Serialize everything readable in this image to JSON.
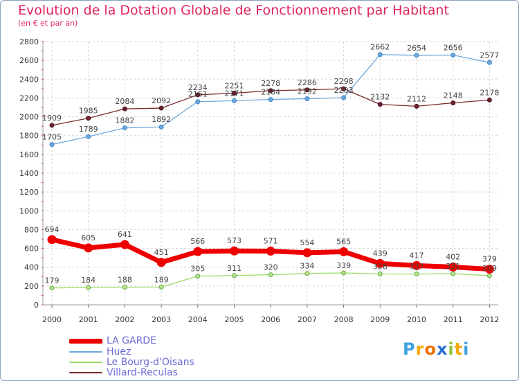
{
  "chart_data": {
    "type": "line",
    "title": "Evolution de la Dotation Globale de Fonctionnement par Habitant",
    "subtitle": "(en € et par an)",
    "xlabel": "",
    "ylabel": "",
    "ylim": [
      0,
      2800
    ],
    "yticks": [
      0,
      200,
      400,
      600,
      800,
      1000,
      1200,
      1400,
      1600,
      1800,
      2000,
      2200,
      2400,
      2600,
      2800
    ],
    "grid": true,
    "categories": [
      "2000",
      "2001",
      "2002",
      "2003",
      "2004",
      "2005",
      "2006",
      "2007",
      "2008",
      "2009",
      "2010",
      "2011",
      "2012"
    ],
    "series": [
      {
        "name": "LA GARDE",
        "color": "#ee0000",
        "values": [
          694,
          605,
          641,
          451,
          566,
          573,
          571,
          554,
          565,
          439,
          417,
          402,
          379
        ]
      },
      {
        "name": "Huez",
        "color": "#6fa8dc",
        "values": [
          1705,
          1789,
          1882,
          1892,
          2161,
          2171,
          2184,
          2192,
          2203,
          2662,
          2654,
          2656,
          2577
        ]
      },
      {
        "name": "Le Bourg-d'Oisans",
        "color": "#99dd66",
        "values": [
          179,
          184,
          188,
          189,
          305,
          311,
          320,
          334,
          339,
          328,
          327,
          331,
          309
        ]
      },
      {
        "name": "Villard-Reculas",
        "color": "#7a2d2d",
        "values": [
          1909,
          1985,
          2084,
          2092,
          2234,
          2251,
          2278,
          2286,
          2298,
          2132,
          2112,
          2148,
          2178
        ]
      }
    ]
  },
  "logo": {
    "letters": [
      "P",
      "r",
      "o",
      "x",
      "i",
      "t",
      "i"
    ],
    "colors": [
      "#3da0e0",
      "#f7a800",
      "#f07000",
      "#2a6fd6",
      "#8cc63f",
      "#f7a800",
      "#3da0e0"
    ]
  }
}
